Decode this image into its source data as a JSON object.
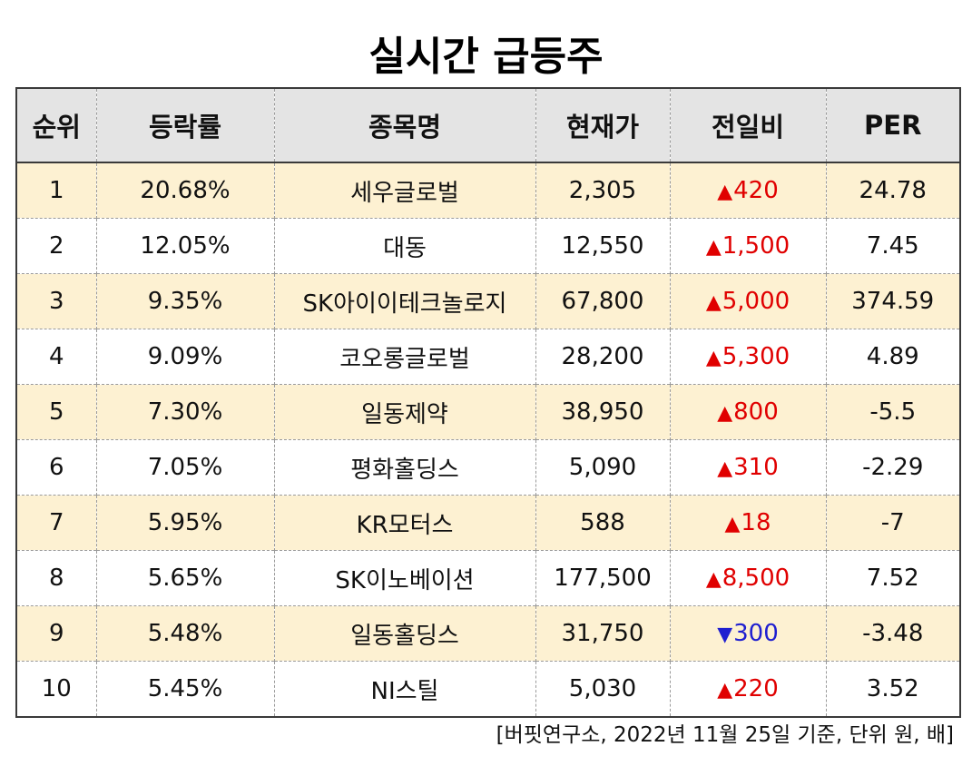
{
  "title": "실시간 급등주",
  "headers": {
    "rank": "순위",
    "rate": "등락률",
    "name": "종목명",
    "price": "현재가",
    "change": "전일비",
    "per": "PER"
  },
  "rows": [
    {
      "rank": "1",
      "rate": "20.68%",
      "name": "세우글로벌",
      "price": "2,305",
      "dir": "up",
      "arrow": "▲",
      "change": "420",
      "per": "24.78"
    },
    {
      "rank": "2",
      "rate": "12.05%",
      "name": "대동",
      "price": "12,550",
      "dir": "up",
      "arrow": "▲",
      "change": "1,500",
      "per": "7.45"
    },
    {
      "rank": "3",
      "rate": "9.35%",
      "name": "SK아이이테크놀로지",
      "price": "67,800",
      "dir": "up",
      "arrow": "▲",
      "change": "5,000",
      "per": "374.59"
    },
    {
      "rank": "4",
      "rate": "9.09%",
      "name": "코오롱글로벌",
      "price": "28,200",
      "dir": "up",
      "arrow": "▲",
      "change": "5,300",
      "per": "4.89"
    },
    {
      "rank": "5",
      "rate": "7.30%",
      "name": "일동제약",
      "price": "38,950",
      "dir": "up",
      "arrow": "▲",
      "change": "800",
      "per": "-5.5"
    },
    {
      "rank": "6",
      "rate": "7.05%",
      "name": "평화홀딩스",
      "price": "5,090",
      "dir": "up",
      "arrow": "▲",
      "change": "310",
      "per": "-2.29"
    },
    {
      "rank": "7",
      "rate": "5.95%",
      "name": "KR모터스",
      "price": "588",
      "dir": "up",
      "arrow": "▲",
      "change": "18",
      "per": "-7"
    },
    {
      "rank": "8",
      "rate": "5.65%",
      "name": "SK이노베이션",
      "price": "177,500",
      "dir": "up",
      "arrow": "▲",
      "change": "8,500",
      "per": "7.52"
    },
    {
      "rank": "9",
      "rate": "5.48%",
      "name": "일동홀딩스",
      "price": "31,750",
      "dir": "down",
      "arrow": "▼",
      "change": "300",
      "per": "-3.48"
    },
    {
      "rank": "10",
      "rate": "5.45%",
      "name": "NI스틸",
      "price": "5,030",
      "dir": "up",
      "arrow": "▲",
      "change": "220",
      "per": "3.52"
    }
  ],
  "colors": {
    "up": "#e00000",
    "down": "#1f1fd0",
    "stripe": "#fdf1d2",
    "header_bg": "#e4e4e4"
  },
  "footnote": "[버핏연구소, 2022년 11월 25일 기준, 단위 원, 배]"
}
